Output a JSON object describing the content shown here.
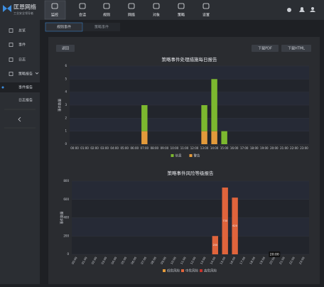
{
  "header": {
    "brand": "匡恩网络",
    "slogan": "工业安全领导者",
    "nav": [
      "监控",
      "会话",
      "规则",
      "网络",
      "对象",
      "策略",
      "设置"
    ]
  },
  "sidebar": {
    "items": [
      "总览",
      "事件",
      "日志",
      "策略报告"
    ],
    "subitems": [
      "事件报告",
      "日志报告"
    ]
  },
  "tabs": [
    "规则事件",
    "策略事件"
  ],
  "toolbar": {
    "back": "返回",
    "pdf": "下载PDF",
    "html": "下载HTML"
  },
  "charts": [
    {
      "type": "bar",
      "stacked": true,
      "title": "策略事件处理措施每日报告",
      "y_label": "事件数量",
      "categories": [
        "00:00",
        "01:00",
        "02:00",
        "03:00",
        "04:00",
        "05:00",
        "06:00",
        "07:00",
        "08:00",
        "09:00",
        "10:00",
        "11:00",
        "12:00",
        "13:00",
        "14:00",
        "15:00",
        "16:00",
        "17:00",
        "18:00",
        "19:00",
        "20:00",
        "21:00",
        "22:00",
        "23:00"
      ],
      "series": [
        {
          "name": "信息",
          "color": "#7cb82f",
          "values": [
            0,
            0,
            0,
            0,
            0,
            0,
            0,
            2,
            0,
            0,
            0,
            0,
            0,
            2,
            4,
            1,
            0,
            0,
            0,
            0,
            0,
            0,
            0,
            0
          ]
        },
        {
          "name": "警告",
          "color": "#e39a3b",
          "values": [
            0,
            0,
            0,
            0,
            0,
            0,
            0,
            1,
            0,
            0,
            0,
            0,
            0,
            1,
            1,
            0,
            0,
            0,
            0,
            0,
            0,
            0,
            0,
            0
          ]
        }
      ],
      "ylim": [
        0,
        6
      ],
      "yticks": [
        0,
        1,
        2,
        3,
        4,
        5,
        6
      ],
      "grid": true
    },
    {
      "type": "bar",
      "stacked": true,
      "title": "策略事件风险等级报告",
      "y_label": "事件数量",
      "tooltip": "20:00",
      "categories": [
        "00:00",
        "01:00",
        "02:00",
        "03:00",
        "04:00",
        "05:00",
        "06:00",
        "07:00",
        "08:00",
        "09:00",
        "10:00",
        "11:00",
        "12:00",
        "13:00",
        "14:00",
        "15:00",
        "16:00",
        "17:00",
        "18:00",
        "19:00",
        "20:00",
        "21:00",
        "22:00",
        "23:00"
      ],
      "series": [
        {
          "name": "低危风险",
          "color": "#e39a3b",
          "values": [
            0,
            0,
            0,
            0,
            0,
            0,
            0,
            0,
            0,
            0,
            0,
            0,
            0,
            0,
            0,
            0,
            0,
            0,
            0,
            0,
            0,
            0,
            0,
            0
          ]
        },
        {
          "name": "中危风险",
          "color": "#e0643c",
          "values": [
            0,
            0,
            0,
            0,
            0,
            0,
            0,
            0,
            0,
            0,
            0,
            0,
            0,
            0,
            200,
            730,
            620,
            0,
            0,
            0,
            0,
            0,
            0,
            0
          ]
        },
        {
          "name": "高危风险",
          "color": "#c8332b",
          "values": [
            0,
            0,
            0,
            0,
            0,
            0,
            0,
            0,
            0,
            0,
            0,
            0,
            0,
            0,
            0,
            0,
            0,
            0,
            0,
            0,
            0,
            0,
            0,
            0
          ]
        }
      ],
      "ylim": [
        0,
        800
      ],
      "yticks": [
        0,
        200,
        400,
        600,
        800
      ],
      "grid": true,
      "rotate_labels": true,
      "show_labels": true
    }
  ]
}
